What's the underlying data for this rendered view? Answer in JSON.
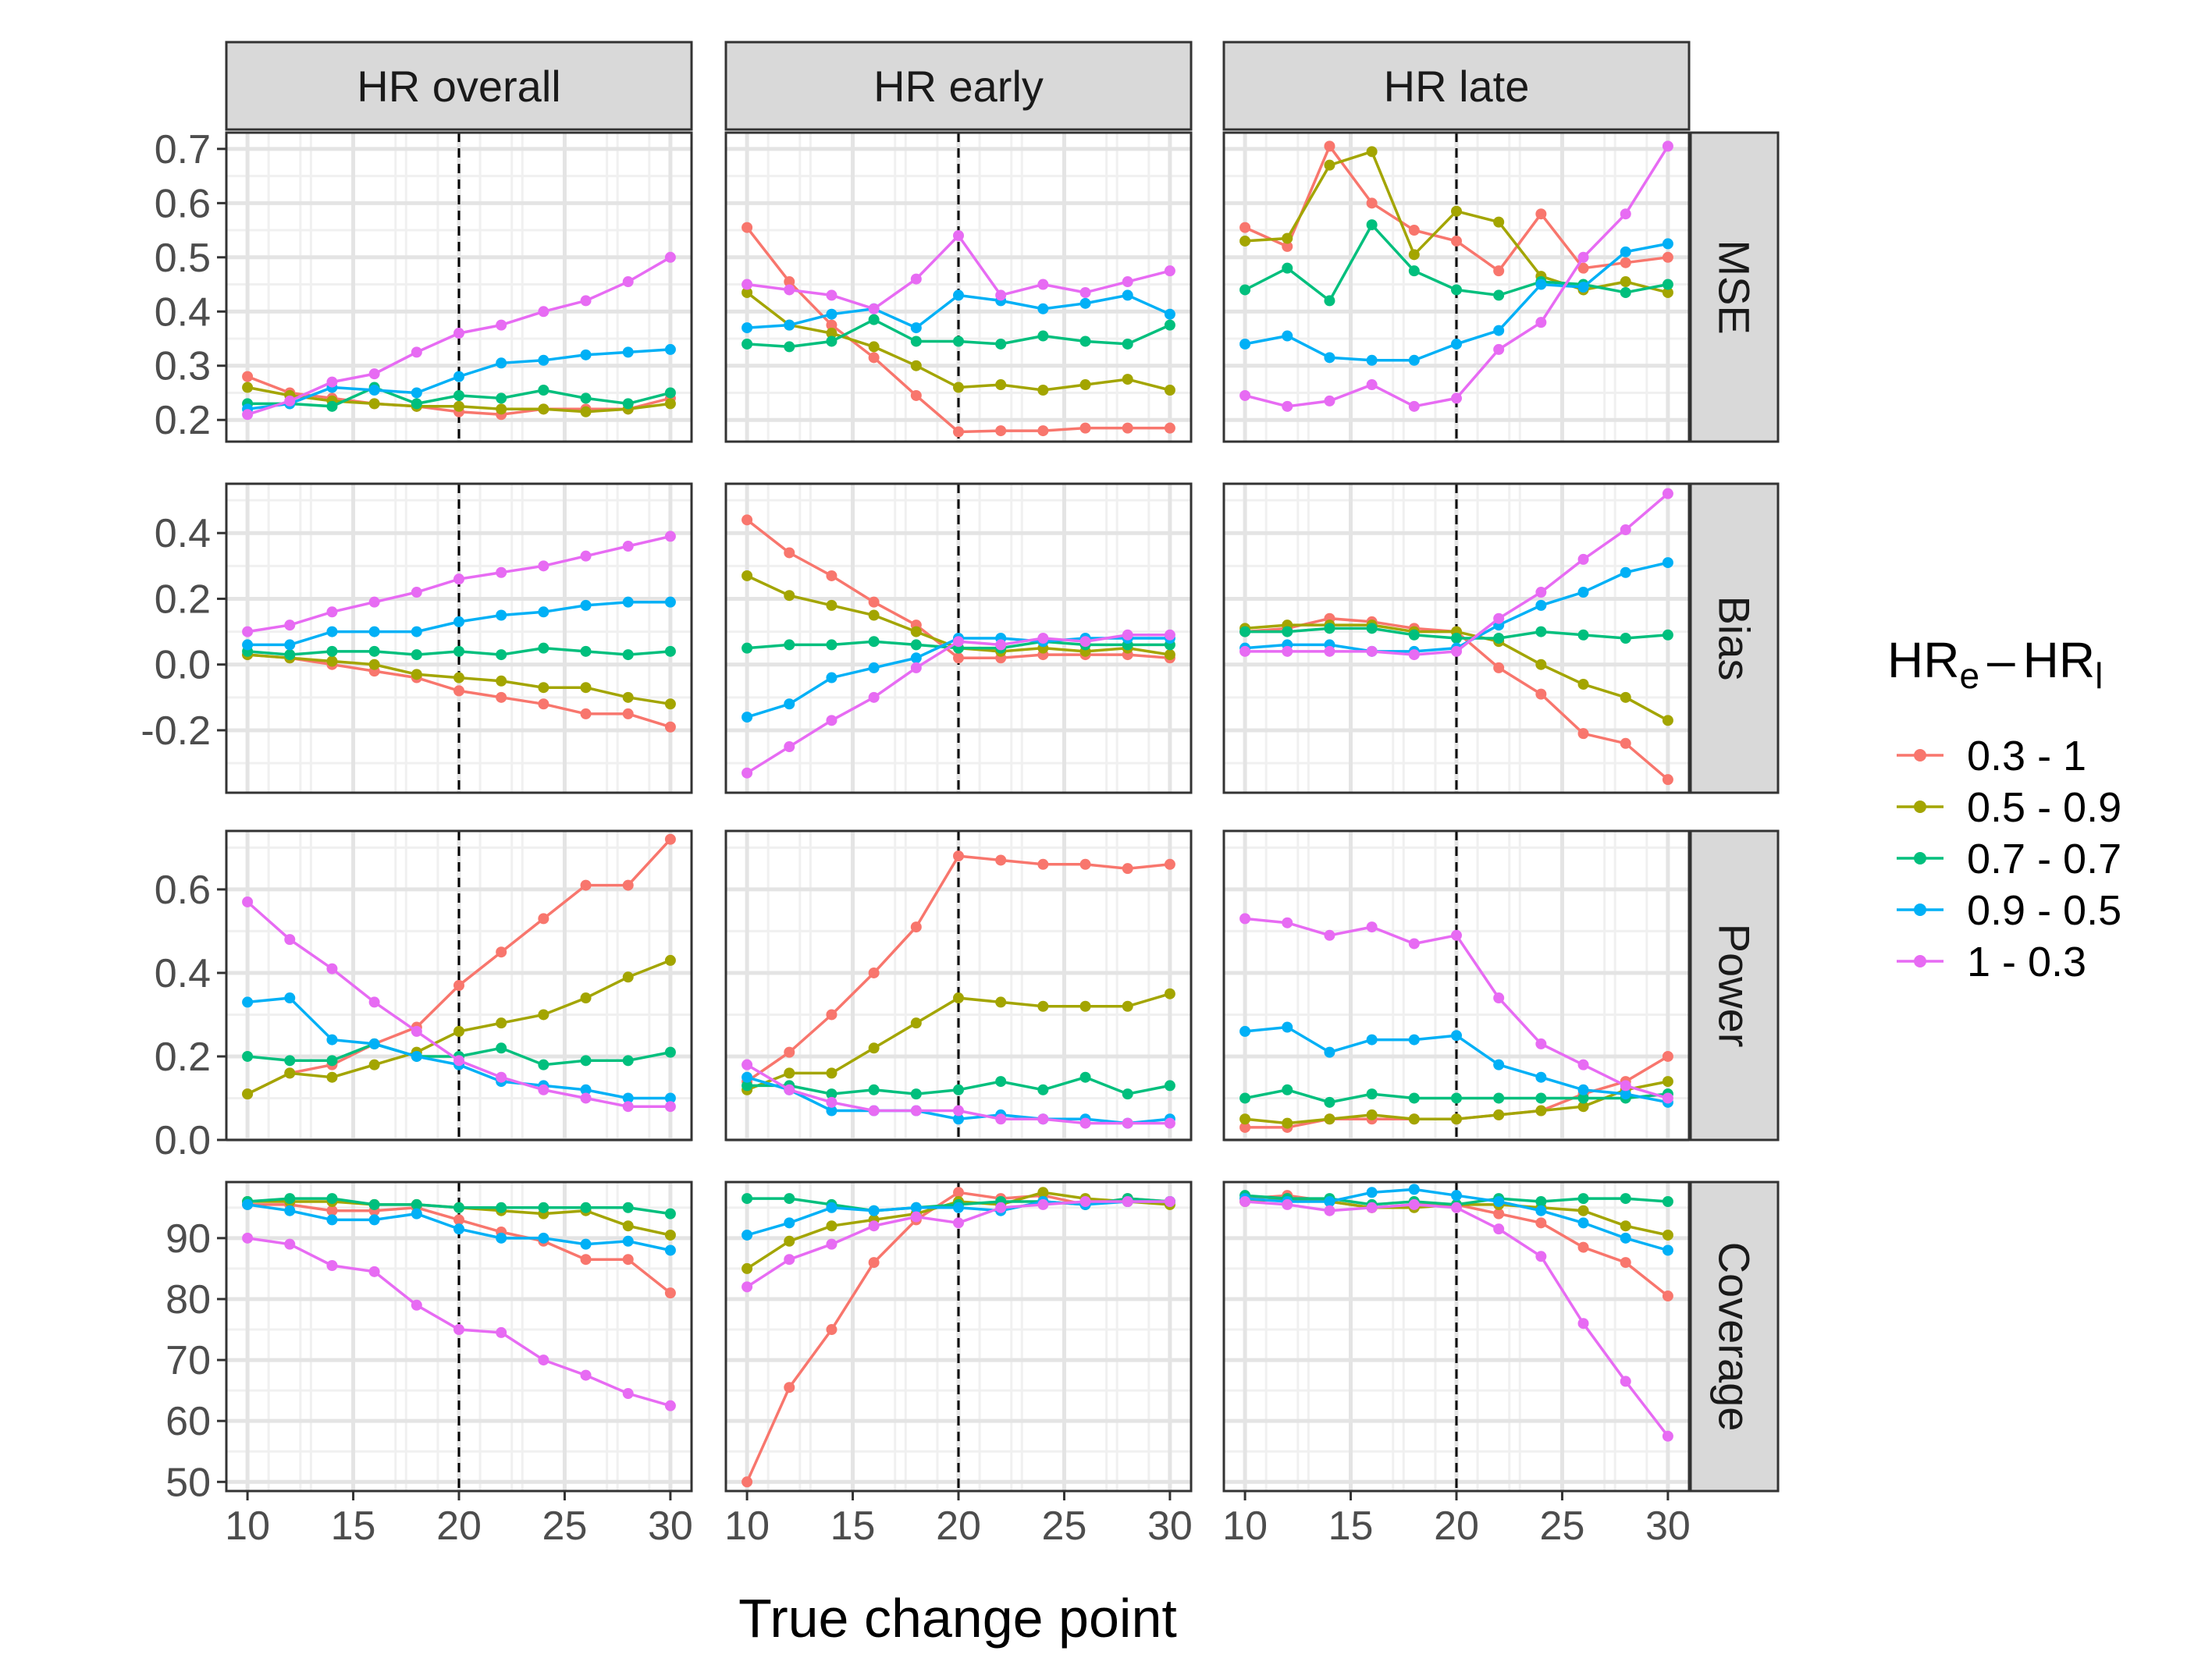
{
  "chart_data": {
    "type": "line",
    "layout": "facet-grid",
    "xlabel": "True change point",
    "ylabel": "",
    "x": [
      10,
      12,
      14,
      16,
      18,
      20,
      22,
      24,
      26,
      28,
      30
    ],
    "xlim": [
      9,
      31
    ],
    "x_ticks": [
      10,
      15,
      20,
      25,
      30
    ],
    "reference_line_x": 20,
    "columns": [
      "HR overall",
      "HR early",
      "HR late"
    ],
    "legend": {
      "title": {
        "main": "HR",
        "sub_e": "e",
        "dash": "–",
        "sub_l": "l"
      },
      "placement": "right"
    },
    "series": [
      {
        "name": "0.3 - 1",
        "color": "#F8766D"
      },
      {
        "name": "0.5 - 0.9",
        "color": "#A3A500"
      },
      {
        "name": "0.7 - 0.7",
        "color": "#00BF7D"
      },
      {
        "name": "0.9 - 0.5",
        "color": "#00B0F6"
      },
      {
        "name": "1 - 0.3",
        "color": "#E76BF3"
      }
    ],
    "rows": [
      {
        "name": "MSE",
        "ylim": [
          0.16,
          0.73
        ],
        "y_ticks": [
          0.2,
          0.3,
          0.4,
          0.5,
          0.6,
          0.7
        ],
        "y_tick_labels": [
          "0.2",
          "0.3",
          "0.4",
          "0.5",
          "0.6",
          "0.7"
        ],
        "panels": [
          [
            [
              0.28,
              0.25,
              0.24,
              0.23,
              0.225,
              0.215,
              0.21,
              0.22,
              0.22,
              0.22,
              0.24
            ],
            [
              0.26,
              0.245,
              0.235,
              0.23,
              0.225,
              0.225,
              0.22,
              0.22,
              0.215,
              0.22,
              0.23
            ],
            [
              0.23,
              0.23,
              0.225,
              0.26,
              0.23,
              0.245,
              0.24,
              0.255,
              0.24,
              0.23,
              0.25
            ],
            [
              0.22,
              0.23,
              0.26,
              0.255,
              0.25,
              0.28,
              0.305,
              0.31,
              0.32,
              0.325,
              0.33
            ],
            [
              0.21,
              0.235,
              0.27,
              0.285,
              0.325,
              0.36,
              0.375,
              0.4,
              0.42,
              0.455,
              0.5
            ]
          ],
          [
            [
              0.555,
              0.455,
              0.375,
              0.315,
              0.245,
              0.178,
              0.18,
              0.18,
              0.185,
              0.185,
              0.185
            ],
            [
              0.435,
              0.375,
              0.36,
              0.335,
              0.3,
              0.26,
              0.265,
              0.255,
              0.265,
              0.275,
              0.255
            ],
            [
              0.34,
              0.335,
              0.345,
              0.385,
              0.345,
              0.345,
              0.34,
              0.355,
              0.345,
              0.34,
              0.375
            ],
            [
              0.37,
              0.375,
              0.395,
              0.405,
              0.37,
              0.43,
              0.42,
              0.405,
              0.415,
              0.43,
              0.395
            ],
            [
              0.45,
              0.44,
              0.43,
              0.405,
              0.46,
              0.54,
              0.43,
              0.45,
              0.435,
              0.455,
              0.475
            ]
          ],
          [
            [
              0.555,
              0.52,
              0.705,
              0.6,
              0.55,
              0.53,
              0.475,
              0.58,
              0.48,
              0.49,
              0.5
            ],
            [
              0.53,
              0.535,
              0.67,
              0.695,
              0.505,
              0.585,
              0.565,
              0.465,
              0.44,
              0.455,
              0.435
            ],
            [
              0.44,
              0.48,
              0.42,
              0.56,
              0.475,
              0.44,
              0.43,
              0.455,
              0.45,
              0.435,
              0.45
            ],
            [
              0.34,
              0.355,
              0.315,
              0.31,
              0.31,
              0.34,
              0.365,
              0.45,
              0.445,
              0.51,
              0.525
            ],
            [
              0.245,
              0.225,
              0.235,
              0.265,
              0.225,
              0.24,
              0.33,
              0.38,
              0.5,
              0.58,
              0.705
            ]
          ]
        ]
      },
      {
        "name": "Bias",
        "ylim": [
          -0.39,
          0.55
        ],
        "y_ticks": [
          -0.2,
          0.0,
          0.2,
          0.4
        ],
        "y_tick_labels": [
          "-0.2",
          "0.0",
          "0.2",
          "0.4"
        ],
        "panels": [
          [
            [
              0.03,
              0.02,
              0.0,
              -0.02,
              -0.04,
              -0.08,
              -0.1,
              -0.12,
              -0.15,
              -0.15,
              -0.19
            ],
            [
              0.03,
              0.02,
              0.01,
              0.0,
              -0.03,
              -0.04,
              -0.05,
              -0.07,
              -0.07,
              -0.1,
              -0.12
            ],
            [
              0.04,
              0.03,
              0.04,
              0.04,
              0.03,
              0.04,
              0.03,
              0.05,
              0.04,
              0.03,
              0.04
            ],
            [
              0.06,
              0.06,
              0.1,
              0.1,
              0.1,
              0.13,
              0.15,
              0.16,
              0.18,
              0.19,
              0.19
            ],
            [
              0.1,
              0.12,
              0.16,
              0.19,
              0.22,
              0.26,
              0.28,
              0.3,
              0.33,
              0.36,
              0.39
            ]
          ],
          [
            [
              0.44,
              0.34,
              0.27,
              0.19,
              0.12,
              0.02,
              0.02,
              0.03,
              0.03,
              0.03,
              0.02
            ],
            [
              0.27,
              0.21,
              0.18,
              0.15,
              0.1,
              0.05,
              0.04,
              0.05,
              0.04,
              0.05,
              0.03
            ],
            [
              0.05,
              0.06,
              0.06,
              0.07,
              0.06,
              0.05,
              0.05,
              0.07,
              0.06,
              0.06,
              0.06
            ],
            [
              -0.16,
              -0.12,
              -0.04,
              -0.01,
              0.02,
              0.08,
              0.08,
              0.07,
              0.08,
              0.08,
              0.08
            ],
            [
              -0.33,
              -0.25,
              -0.17,
              -0.1,
              -0.01,
              0.07,
              0.06,
              0.08,
              0.07,
              0.09,
              0.09
            ]
          ],
          [
            [
              0.1,
              0.11,
              0.14,
              0.13,
              0.11,
              0.1,
              -0.01,
              -0.09,
              -0.21,
              -0.24,
              -0.35
            ],
            [
              0.11,
              0.12,
              0.12,
              0.12,
              0.1,
              0.1,
              0.07,
              0.0,
              -0.06,
              -0.1,
              -0.17
            ],
            [
              0.1,
              0.1,
              0.11,
              0.11,
              0.09,
              0.08,
              0.08,
              0.1,
              0.09,
              0.08,
              0.09
            ],
            [
              0.05,
              0.06,
              0.06,
              0.04,
              0.04,
              0.05,
              0.12,
              0.18,
              0.22,
              0.28,
              0.31
            ],
            [
              0.04,
              0.04,
              0.04,
              0.04,
              0.03,
              0.04,
              0.14,
              0.22,
              0.32,
              0.41,
              0.52
            ]
          ]
        ]
      },
      {
        "name": "Power",
        "ylim": [
          0.0,
          0.74
        ],
        "y_ticks": [
          0.0,
          0.2,
          0.4,
          0.6
        ],
        "y_tick_labels": [
          "0.0",
          "0.2",
          "0.4",
          "0.6"
        ],
        "panels": [
          [
            [
              0.11,
              0.16,
              0.18,
              0.23,
              0.27,
              0.37,
              0.45,
              0.53,
              0.61,
              0.61,
              0.72
            ],
            [
              0.11,
              0.16,
              0.15,
              0.18,
              0.21,
              0.26,
              0.28,
              0.3,
              0.34,
              0.39,
              0.43
            ],
            [
              0.2,
              0.19,
              0.19,
              0.23,
              0.2,
              0.2,
              0.22,
              0.18,
              0.19,
              0.19,
              0.21
            ],
            [
              0.33,
              0.34,
              0.24,
              0.23,
              0.2,
              0.18,
              0.14,
              0.13,
              0.12,
              0.1,
              0.1
            ],
            [
              0.57,
              0.48,
              0.41,
              0.33,
              0.26,
              0.19,
              0.15,
              0.12,
              0.1,
              0.08,
              0.08
            ]
          ],
          [
            [
              0.14,
              0.21,
              0.3,
              0.4,
              0.51,
              0.68,
              0.67,
              0.66,
              0.66,
              0.65,
              0.66
            ],
            [
              0.12,
              0.16,
              0.16,
              0.22,
              0.28,
              0.34,
              0.33,
              0.32,
              0.32,
              0.32,
              0.35
            ],
            [
              0.13,
              0.13,
              0.11,
              0.12,
              0.11,
              0.12,
              0.14,
              0.12,
              0.15,
              0.11,
              0.13
            ],
            [
              0.15,
              0.12,
              0.07,
              0.07,
              0.07,
              0.05,
              0.06,
              0.05,
              0.05,
              0.04,
              0.05
            ],
            [
              0.18,
              0.12,
              0.09,
              0.07,
              0.07,
              0.07,
              0.05,
              0.05,
              0.04,
              0.04,
              0.04
            ]
          ],
          [
            [
              0.03,
              0.03,
              0.05,
              0.05,
              0.05,
              0.05,
              0.06,
              0.07,
              0.11,
              0.14,
              0.2
            ],
            [
              0.05,
              0.04,
              0.05,
              0.06,
              0.05,
              0.05,
              0.06,
              0.07,
              0.08,
              0.12,
              0.14
            ],
            [
              0.1,
              0.12,
              0.09,
              0.11,
              0.1,
              0.1,
              0.1,
              0.1,
              0.1,
              0.1,
              0.11
            ],
            [
              0.26,
              0.27,
              0.21,
              0.24,
              0.24,
              0.25,
              0.18,
              0.15,
              0.12,
              0.11,
              0.09
            ],
            [
              0.53,
              0.52,
              0.49,
              0.51,
              0.47,
              0.49,
              0.34,
              0.23,
              0.18,
              0.13,
              0.1
            ]
          ]
        ]
      },
      {
        "name": "Coverage",
        "ylim": [
          48.5,
          99.2
        ],
        "y_ticks": [
          50,
          60,
          70,
          80,
          90
        ],
        "y_tick_labels": [
          "50",
          "60",
          "70",
          "80",
          "90"
        ],
        "panels": [
          [
            [
              95.5,
              95.5,
              94.5,
              94.5,
              95.0,
              93.0,
              91.0,
              89.5,
              86.5,
              86.5,
              81.0
            ],
            [
              96.0,
              96.0,
              96.0,
              95.5,
              95.5,
              95.0,
              94.5,
              94.0,
              94.5,
              92.0,
              90.5
            ],
            [
              96.0,
              96.5,
              96.5,
              95.5,
              95.5,
              95.0,
              95.0,
              95.0,
              95.0,
              95.0,
              94.0
            ],
            [
              95.5,
              94.5,
              93.0,
              93.0,
              94.0,
              91.5,
              90.0,
              90.0,
              89.0,
              89.5,
              88.0
            ],
            [
              90.0,
              89.0,
              85.5,
              84.5,
              79.0,
              75.0,
              74.5,
              70.0,
              67.5,
              64.5,
              62.5
            ]
          ],
          [
            [
              50.0,
              65.5,
              75.0,
              86.0,
              93.0,
              97.5,
              96.5,
              97.0,
              95.5,
              96.5,
              96.0
            ],
            [
              85.0,
              89.5,
              92.0,
              93.0,
              94.0,
              96.0,
              95.5,
              97.5,
              96.5,
              96.0,
              95.5
            ],
            [
              96.5,
              96.5,
              95.5,
              94.5,
              95.0,
              95.5,
              96.0,
              96.0,
              95.5,
              96.5,
              96.0
            ],
            [
              90.5,
              92.5,
              95.0,
              94.5,
              95.0,
              95.0,
              94.5,
              96.0,
              95.5,
              96.0,
              96.0
            ],
            [
              82.0,
              86.5,
              89.0,
              92.0,
              93.5,
              92.5,
              95.0,
              95.5,
              96.0,
              96.0,
              96.0
            ]
          ],
          [
            [
              96.5,
              97.0,
              96.0,
              95.0,
              95.5,
              95.5,
              94.0,
              92.5,
              88.5,
              86.0,
              80.5
            ],
            [
              96.0,
              96.5,
              96.0,
              95.0,
              95.0,
              95.5,
              95.5,
              95.0,
              94.5,
              92.0,
              90.5
            ],
            [
              97.0,
              96.5,
              96.5,
              95.5,
              96.0,
              95.5,
              96.5,
              96.0,
              96.5,
              96.5,
              96.0
            ],
            [
              96.5,
              96.0,
              96.0,
              97.5,
              98.0,
              97.0,
              96.0,
              94.5,
              92.5,
              90.0,
              88.0
            ],
            [
              96.0,
              95.5,
              94.5,
              95.0,
              95.5,
              95.0,
              91.5,
              87.0,
              76.0,
              66.5,
              57.5
            ]
          ]
        ]
      }
    ]
  }
}
